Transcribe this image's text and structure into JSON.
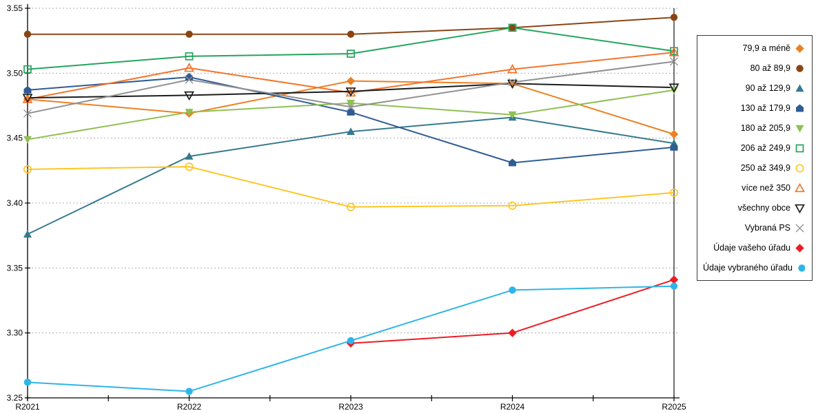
{
  "chart_data": {
    "type": "line",
    "title": "",
    "xlabel": "",
    "ylabel": "",
    "categories": [
      "R2021",
      "R2022",
      "R2023",
      "R2024",
      "R2025"
    ],
    "ylim": [
      3.25,
      3.55
    ],
    "y_ticks": [
      "3.25",
      "3.30",
      "3.35",
      "3.40",
      "3.45",
      "3.50",
      "3.55"
    ],
    "y_tick_values": [
      3.25,
      3.3,
      3.35,
      3.4,
      3.45,
      3.5,
      3.55
    ],
    "grid": "horizontal-dotted",
    "legend_position": "right",
    "series": [
      {
        "name": "79,9 a méně",
        "color": "#ED8022",
        "marker": "diamond",
        "style": "filled",
        "values": [
          3.48,
          3.469,
          3.494,
          3.492,
          3.453
        ]
      },
      {
        "name": "80 až 89,9",
        "color": "#8A4513",
        "marker": "circle",
        "style": "filled",
        "values": [
          3.53,
          3.53,
          3.53,
          3.535,
          3.543
        ]
      },
      {
        "name": "90 až 129,9",
        "color": "#35798E",
        "marker": "triangle-up",
        "style": "filled",
        "values": [
          3.376,
          3.436,
          3.455,
          3.466,
          3.446
        ]
      },
      {
        "name": "130 až 179,9",
        "color": "#2F5C93",
        "marker": "pentagon",
        "style": "filled",
        "values": [
          3.487,
          3.497,
          3.47,
          3.431,
          3.443
        ]
      },
      {
        "name": "180 až 205,9",
        "color": "#8FC052",
        "marker": "triangle-down",
        "style": "filled",
        "values": [
          3.449,
          3.47,
          3.477,
          3.468,
          3.487
        ]
      },
      {
        "name": "206 až 249,9",
        "color": "#23A45C",
        "marker": "square",
        "style": "open",
        "values": [
          3.503,
          3.513,
          3.515,
          3.535,
          3.517
        ]
      },
      {
        "name": "250 až 349,9",
        "color": "#FFC524",
        "marker": "circle",
        "style": "open",
        "values": [
          3.426,
          3.428,
          3.397,
          3.398,
          3.408
        ]
      },
      {
        "name": "více než 350",
        "color": "#F2742C",
        "marker": "triangle-up",
        "style": "open",
        "values": [
          3.48,
          3.504,
          3.485,
          3.503,
          3.516
        ]
      },
      {
        "name": "všechny obce",
        "color": "#1C1C1C",
        "marker": "triangle-down",
        "style": "open",
        "values": [
          3.481,
          3.483,
          3.486,
          3.492,
          3.489
        ]
      },
      {
        "name": "Vybraná PS",
        "color": "#909090",
        "marker": "x",
        "style": "open",
        "values": [
          3.469,
          3.495,
          3.474,
          3.493,
          3.509
        ]
      },
      {
        "name": "Údaje vašeho úřadu",
        "color": "#EC1C24",
        "marker": "diamond",
        "style": "filled",
        "values": [
          null,
          null,
          3.292,
          3.3,
          3.341
        ]
      },
      {
        "name": "Údaje vybraného úřadu",
        "color": "#2EB5E8",
        "marker": "circle",
        "style": "filled",
        "values": [
          3.262,
          3.255,
          3.294,
          3.333,
          3.336
        ]
      }
    ]
  },
  "colors": {
    "grid": "#ADADAD",
    "axis": "#000000",
    "background": "#FFFFFF",
    "legend_border": "#3A3A3A"
  }
}
